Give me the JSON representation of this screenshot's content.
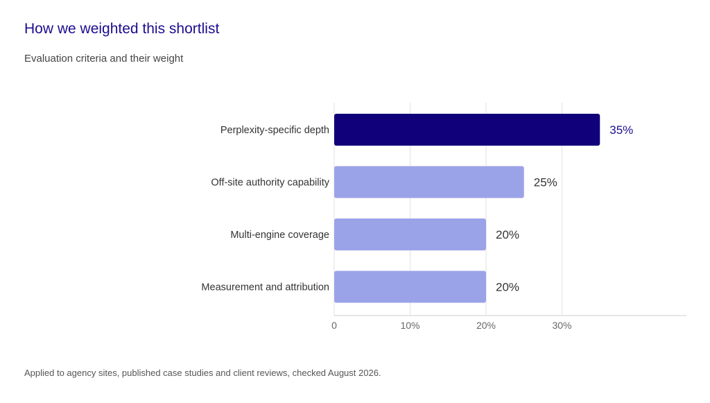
{
  "title": "How we weighted this shortlist",
  "subtitle": "Evaluation criteria and their weight",
  "note": "Applied to agency sites, published case studies and client reviews, checked August 2026.",
  "colors": {
    "highlight": "#10007a",
    "bar": "#9ba3e8",
    "highlight_label": "#1a0d8f",
    "label": "#333333",
    "grid": "#e2e2e2",
    "axis": "#cccccc",
    "tick": "#666666"
  },
  "chart_data": {
    "type": "bar",
    "orientation": "horizontal",
    "categories": [
      "Perplexity-specific depth",
      "Off-site authority capability",
      "Multi-engine coverage",
      "Measurement and attribution"
    ],
    "values": [
      35,
      25,
      20,
      20
    ],
    "value_labels": [
      "35%",
      "25%",
      "20%",
      "20%"
    ],
    "highlighted_index": 0,
    "xlim": [
      0,
      46
    ],
    "xticks": [
      0,
      10,
      20,
      30
    ],
    "xtick_labels": [
      "0",
      "10%",
      "20%",
      "30%"
    ],
    "grid": true,
    "legend": "none"
  }
}
